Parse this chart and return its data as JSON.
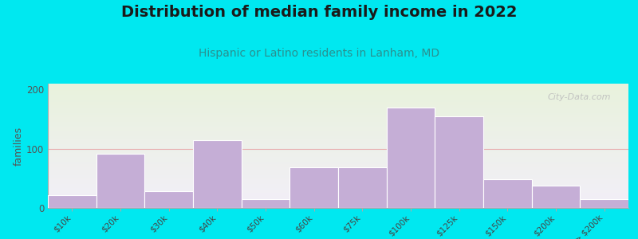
{
  "title": "Distribution of median family income in 2022",
  "subtitle": "Hispanic or Latino residents in Lanham, MD",
  "ylabel": "families",
  "categories": [
    "$10k",
    "$20k",
    "$30k",
    "$40k",
    "$50k",
    "$60k",
    "$75k",
    "$100k",
    "$125k",
    "$150k",
    "$200k",
    "> $200k"
  ],
  "values": [
    22,
    92,
    28,
    115,
    15,
    68,
    68,
    170,
    155,
    48,
    38,
    15
  ],
  "bar_color": "#c5aed6",
  "bar_edge_color": "#c5aed6",
  "background_outer": "#00e8f0",
  "bg_top_color": "#e8f2dc",
  "bg_bottom_color": "#f2eef8",
  "grid_color": "#e8b0b0",
  "ylim": [
    0,
    210
  ],
  "yticks": [
    0,
    100,
    200
  ],
  "title_fontsize": 14,
  "subtitle_fontsize": 10,
  "ylabel_fontsize": 9,
  "tick_fontsize": 7.5,
  "watermark": "City-Data.com"
}
